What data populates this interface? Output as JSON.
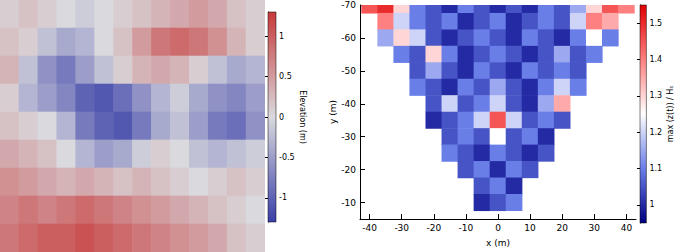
{
  "chart_data": [
    {
      "type": "heatmap",
      "tick_labels": false,
      "colorbar_label": "Elevation (m)",
      "colorbar_range": [
        -1.3,
        1.3
      ],
      "colorbar_ticks": [
        -1,
        -0.5,
        0,
        0.5,
        1
      ],
      "cells": [
        [
          0.1,
          0.2,
          0.1,
          0,
          -0.1,
          0,
          0.1,
          0.2,
          0.3,
          0.4,
          0.5,
          0.4,
          0.2,
          0.1
        ],
        [
          0.2,
          0.1,
          -0.2,
          -0.4,
          -0.3,
          0,
          0.2,
          0.5,
          0.8,
          0.9,
          0.8,
          0.6,
          0.3,
          0.1
        ],
        [
          0.3,
          -0.2,
          -0.6,
          -0.8,
          -0.5,
          -0.2,
          0.1,
          0.3,
          0.4,
          0.3,
          0.1,
          -0.2,
          -0.4,
          -0.3
        ],
        [
          0.1,
          -0.3,
          -0.5,
          -0.7,
          -1.0,
          -1.1,
          -0.9,
          -0.6,
          -0.3,
          -0.1,
          -0.4,
          -0.6,
          -0.7,
          -0.5
        ],
        [
          0.2,
          0.1,
          0.0,
          -0.3,
          -0.8,
          -1.0,
          -1.1,
          -0.8,
          -0.4,
          -0.2,
          -0.5,
          -0.8,
          -0.9,
          -0.6
        ],
        [
          0.4,
          0.3,
          0.2,
          0.0,
          -0.3,
          -0.5,
          -0.4,
          -0.1,
          0.1,
          0.0,
          -0.2,
          -0.3,
          -0.2,
          -0.1
        ],
        [
          0.6,
          0.5,
          0.4,
          0.3,
          0.4,
          0.3,
          0.2,
          0.3,
          0.2,
          0.1,
          0.0,
          0.1,
          0.2,
          0.1
        ],
        [
          0.7,
          0.8,
          0.7,
          0.8,
          0.9,
          0.8,
          0.7,
          0.6,
          0.5,
          0.4,
          0.3,
          0.2,
          0.1,
          0.0
        ],
        [
          0.8,
          0.9,
          1.0,
          1.0,
          1.1,
          1.0,
          0.9,
          0.8,
          0.7,
          0.6,
          0.5,
          0.4,
          0.2,
          0.1
        ]
      ]
    },
    {
      "type": "heatmap",
      "xlabel": "x (m)",
      "ylabel": "y (m)",
      "xlim": [
        -43,
        43
      ],
      "xticks": [
        -40,
        -30,
        -20,
        -10,
        0,
        10,
        20,
        30,
        40
      ],
      "ylim": [
        -5,
        -70
      ],
      "yticks": [
        -70,
        -60,
        -50,
        -40,
        -30,
        -20,
        -10
      ],
      "colorbar_label": "max (z(t)) / Hₛ",
      "colorbar_range": [
        0.95,
        1.55
      ],
      "colorbar_ticks": [
        1,
        1.1,
        1.2,
        1.3,
        1.4,
        1.5
      ],
      "x": [
        -40,
        -35,
        -30,
        -25,
        -20,
        -15,
        -10,
        -5,
        0,
        5,
        10,
        15,
        20,
        25,
        30,
        35,
        40
      ],
      "y": [
        -70,
        -65,
        -60,
        -55,
        -50,
        -45,
        -40,
        -35,
        -30,
        -25,
        -20,
        -15,
        -10
      ],
      "cells": [
        [
          1.45,
          1.5,
          1.3,
          1.1,
          1.05,
          1.0,
          1.1,
          1.05,
          1.0,
          1.05,
          1.0,
          1.1,
          1.05,
          1.15,
          1.3,
          1.45,
          1.4
        ],
        [
          null,
          1.4,
          1.2,
          1.1,
          1.05,
          1.1,
          1.0,
          1.05,
          1.1,
          1.0,
          1.05,
          1.1,
          1.05,
          1.2,
          1.4,
          1.35,
          null
        ],
        [
          null,
          1.15,
          1.3,
          1.2,
          1.05,
          1.0,
          1.05,
          1.1,
          1.05,
          1.0,
          1.1,
          1.05,
          1.0,
          1.1,
          1.25,
          1.1,
          null
        ],
        [
          null,
          null,
          1.1,
          1.05,
          1.3,
          1.1,
          1.0,
          1.05,
          1.1,
          1.05,
          1.0,
          1.05,
          1.15,
          1.05,
          1.1,
          null,
          null
        ],
        [
          null,
          null,
          null,
          1.05,
          1.15,
          1.05,
          1.0,
          1.1,
          1.05,
          1.0,
          1.1,
          1.05,
          1.1,
          1.05,
          null,
          null,
          null
        ],
        [
          null,
          null,
          null,
          1.1,
          1.05,
          1.0,
          1.1,
          1.05,
          1.15,
          1.05,
          1.0,
          1.1,
          1.2,
          1.1,
          null,
          null,
          null
        ],
        [
          null,
          null,
          null,
          null,
          1.05,
          1.2,
          1.05,
          1.1,
          1.2,
          1.05,
          1.0,
          1.15,
          1.35,
          null,
          null,
          null,
          null
        ],
        [
          null,
          null,
          null,
          null,
          1.0,
          1.05,
          1.1,
          1.2,
          1.45,
          1.2,
          1.05,
          1.1,
          1.05,
          null,
          null,
          null,
          null
        ],
        [
          null,
          null,
          null,
          null,
          null,
          1.05,
          1.1,
          1.05,
          1.25,
          1.05,
          1.1,
          1.0,
          null,
          null,
          null,
          null,
          null
        ],
        [
          null,
          null,
          null,
          null,
          null,
          1.1,
          1.05,
          1.0,
          1.1,
          1.05,
          1.0,
          1.05,
          null,
          null,
          null,
          null,
          null
        ],
        [
          null,
          null,
          null,
          null,
          null,
          null,
          1.05,
          1.1,
          1.0,
          1.1,
          1.05,
          null,
          null,
          null,
          null,
          null,
          null
        ],
        [
          null,
          null,
          null,
          null,
          null,
          null,
          null,
          1.05,
          1.1,
          1.0,
          null,
          null,
          null,
          null,
          null,
          null,
          null
        ],
        [
          null,
          null,
          null,
          null,
          null,
          null,
          null,
          1.0,
          1.05,
          1.1,
          null,
          null,
          null,
          null,
          null,
          null,
          null
        ]
      ]
    }
  ]
}
